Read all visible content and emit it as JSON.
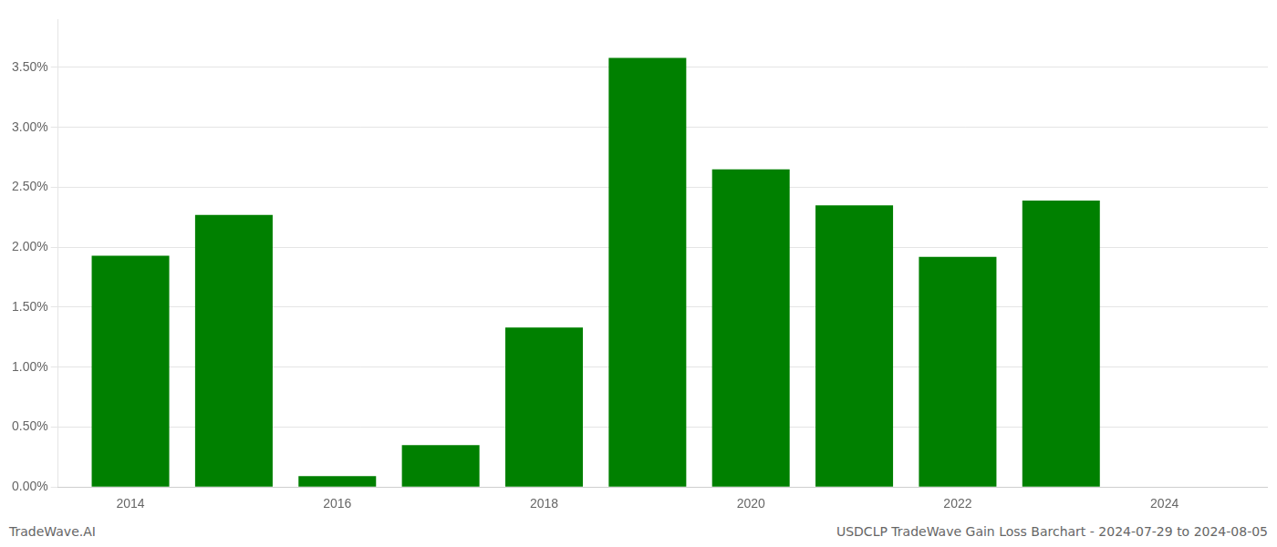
{
  "chart_data": {
    "type": "bar",
    "x": [
      2014,
      2015,
      2016,
      2017,
      2018,
      2019,
      2020,
      2021,
      2022,
      2023,
      2024
    ],
    "values": [
      1.93,
      2.27,
      0.09,
      0.35,
      1.33,
      3.58,
      2.65,
      2.35,
      1.92,
      2.39,
      0.0
    ],
    "color": "#008000",
    "xlim": [
      2013.3,
      2025.0
    ],
    "xticks": [
      2014,
      2016,
      2018,
      2020,
      2022,
      2024
    ],
    "ylim": [
      0,
      3.9
    ],
    "yticks": [
      {
        "value": 0.0,
        "label": "0.00%"
      },
      {
        "value": 0.5,
        "label": "0.50%"
      },
      {
        "value": 1.0,
        "label": "1.00%"
      },
      {
        "value": 1.5,
        "label": "1.50%"
      },
      {
        "value": 2.0,
        "label": "2.00%"
      },
      {
        "value": 2.5,
        "label": "2.50%"
      },
      {
        "value": 3.0,
        "label": "3.00%"
      },
      {
        "value": 3.5,
        "label": "3.50%"
      }
    ],
    "grid": "y",
    "annotations": [
      "TradeWave.AI",
      "USDCLP TradeWave Gain Loss Barchart - 2024-07-29 to 2024-08-05"
    ]
  }
}
